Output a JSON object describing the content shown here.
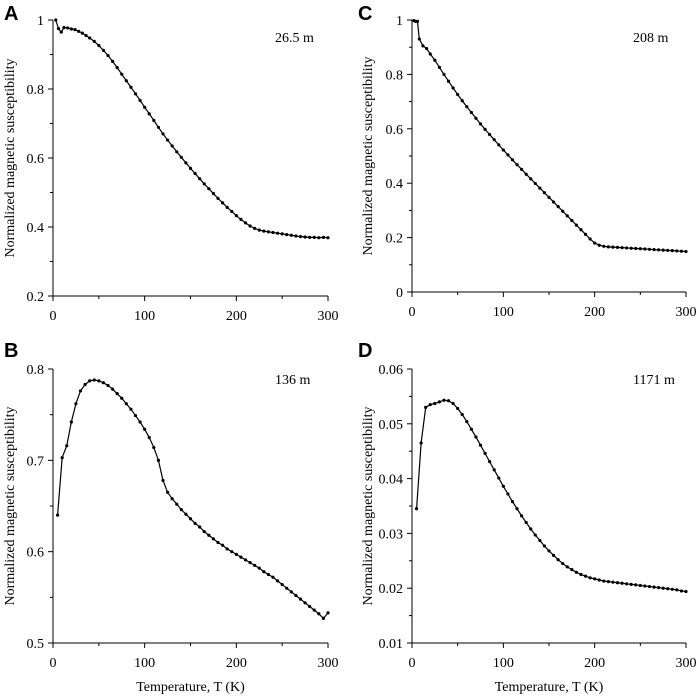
{
  "chart_data": [
    {
      "type": "line",
      "panel": "A",
      "annotation": "26.5 m",
      "ylabel": "Normalized magnetic susceptibility",
      "xlabel": "",
      "xlim": [
        0,
        300
      ],
      "ylim": [
        0.2,
        1.0
      ],
      "xticks": [
        "0",
        "100",
        "200",
        "300"
      ],
      "yticks": [
        "0.2",
        "0.4",
        "0.6",
        "0.8",
        "1"
      ],
      "x": [
        3,
        6,
        9,
        12,
        16,
        20,
        24,
        28,
        32,
        36,
        40,
        45,
        50,
        55,
        60,
        65,
        70,
        75,
        80,
        85,
        90,
        95,
        100,
        105,
        110,
        115,
        120,
        125,
        130,
        135,
        140,
        145,
        150,
        155,
        160,
        165,
        170,
        175,
        180,
        185,
        190,
        195,
        200,
        205,
        210,
        215,
        220,
        225,
        230,
        235,
        240,
        245,
        250,
        255,
        260,
        265,
        270,
        275,
        280,
        285,
        290,
        295,
        300
      ],
      "y": [
        1.0,
        0.975,
        0.965,
        0.978,
        0.977,
        0.974,
        0.972,
        0.967,
        0.962,
        0.955,
        0.948,
        0.938,
        0.926,
        0.912,
        0.897,
        0.88,
        0.862,
        0.843,
        0.824,
        0.805,
        0.786,
        0.767,
        0.747,
        0.728,
        0.709,
        0.689,
        0.67,
        0.652,
        0.635,
        0.618,
        0.602,
        0.586,
        0.57,
        0.555,
        0.54,
        0.525,
        0.511,
        0.497,
        0.483,
        0.47,
        0.457,
        0.445,
        0.433,
        0.422,
        0.412,
        0.403,
        0.396,
        0.391,
        0.388,
        0.386,
        0.384,
        0.382,
        0.38,
        0.378,
        0.376,
        0.374,
        0.372,
        0.371,
        0.37,
        0.37,
        0.369,
        0.37,
        0.369
      ]
    },
    {
      "type": "line",
      "panel": "B",
      "annotation": "136 m",
      "ylabel": "Normalized magnetic susceptibility",
      "xlabel": "Temperature, T (K)",
      "xlim": [
        0,
        300
      ],
      "ylim": [
        0.5,
        0.8
      ],
      "xticks": [
        "0",
        "100",
        "200",
        "300"
      ],
      "yticks": [
        "0.5",
        "0.6",
        "0.7",
        "0.8"
      ],
      "x": [
        5,
        10,
        15,
        20,
        25,
        30,
        35,
        40,
        45,
        50,
        55,
        60,
        65,
        70,
        75,
        80,
        85,
        90,
        95,
        100,
        105,
        110,
        115,
        120,
        125,
        130,
        135,
        140,
        145,
        150,
        155,
        160,
        165,
        170,
        175,
        180,
        185,
        190,
        195,
        200,
        205,
        210,
        215,
        220,
        225,
        230,
        235,
        240,
        245,
        250,
        255,
        260,
        265,
        270,
        275,
        280,
        285,
        290,
        295,
        300
      ],
      "y": [
        0.64,
        0.703,
        0.716,
        0.742,
        0.762,
        0.776,
        0.783,
        0.787,
        0.788,
        0.787,
        0.785,
        0.782,
        0.778,
        0.773,
        0.768,
        0.762,
        0.756,
        0.749,
        0.742,
        0.734,
        0.725,
        0.714,
        0.7,
        0.678,
        0.665,
        0.658,
        0.652,
        0.646,
        0.641,
        0.636,
        0.631,
        0.627,
        0.622,
        0.618,
        0.614,
        0.61,
        0.607,
        0.603,
        0.6,
        0.597,
        0.594,
        0.591,
        0.588,
        0.585,
        0.582,
        0.578,
        0.575,
        0.572,
        0.568,
        0.564,
        0.56,
        0.556,
        0.552,
        0.548,
        0.544,
        0.54,
        0.536,
        0.532,
        0.527,
        0.533
      ]
    },
    {
      "type": "line",
      "panel": "C",
      "annotation": "208 m",
      "ylabel": "Normalized magnetic susceptibility",
      "xlabel": "",
      "xlim": [
        0,
        300
      ],
      "ylim": [
        0,
        1.0
      ],
      "xticks": [
        "0",
        "100",
        "200",
        "300"
      ],
      "yticks": [
        "0",
        "0.2",
        "0.4",
        "0.6",
        "0.8",
        "1"
      ],
      "x": [
        2,
        4,
        6,
        8,
        12,
        16,
        20,
        25,
        30,
        35,
        40,
        45,
        50,
        55,
        60,
        65,
        70,
        75,
        80,
        85,
        90,
        95,
        100,
        105,
        110,
        115,
        120,
        125,
        130,
        135,
        140,
        145,
        150,
        155,
        160,
        165,
        170,
        175,
        180,
        185,
        190,
        195,
        200,
        205,
        210,
        215,
        220,
        225,
        230,
        235,
        240,
        245,
        250,
        255,
        260,
        265,
        270,
        275,
        280,
        285,
        290,
        295,
        300
      ],
      "y": [
        0.998,
        0.995,
        0.995,
        0.93,
        0.905,
        0.895,
        0.875,
        0.852,
        0.826,
        0.8,
        0.775,
        0.75,
        0.726,
        0.703,
        0.681,
        0.66,
        0.639,
        0.618,
        0.598,
        0.579,
        0.56,
        0.541,
        0.522,
        0.504,
        0.486,
        0.468,
        0.451,
        0.433,
        0.416,
        0.399,
        0.382,
        0.365,
        0.348,
        0.331,
        0.314,
        0.297,
        0.28,
        0.263,
        0.246,
        0.229,
        0.212,
        0.195,
        0.18,
        0.172,
        0.168,
        0.166,
        0.165,
        0.164,
        0.163,
        0.162,
        0.161,
        0.16,
        0.159,
        0.158,
        0.157,
        0.156,
        0.155,
        0.154,
        0.153,
        0.152,
        0.151,
        0.15,
        0.149
      ]
    },
    {
      "type": "line",
      "panel": "D",
      "annotation": "1171 m",
      "ylabel": "Normalized magnetic susceptibility",
      "xlabel": "Temperature, T (K)",
      "xlim": [
        0,
        300
      ],
      "ylim": [
        0.01,
        0.06
      ],
      "xticks": [
        "0",
        "100",
        "200",
        "300"
      ],
      "yticks": [
        "0.01",
        "0.02",
        "0.03",
        "0.04",
        "0.05",
        "0.06"
      ],
      "x": [
        5,
        10,
        15,
        20,
        25,
        30,
        35,
        40,
        45,
        50,
        55,
        60,
        65,
        70,
        75,
        80,
        85,
        90,
        95,
        100,
        105,
        110,
        115,
        120,
        125,
        130,
        135,
        140,
        145,
        150,
        155,
        160,
        165,
        170,
        175,
        180,
        185,
        190,
        195,
        200,
        205,
        210,
        215,
        220,
        225,
        230,
        235,
        240,
        245,
        250,
        255,
        260,
        265,
        270,
        275,
        280,
        285,
        290,
        295,
        300
      ],
      "y": [
        0.0345,
        0.0465,
        0.053,
        0.0535,
        0.0537,
        0.054,
        0.0543,
        0.0542,
        0.0537,
        0.0528,
        0.0517,
        0.0504,
        0.049,
        0.0476,
        0.0461,
        0.0446,
        0.0431,
        0.0416,
        0.0401,
        0.0386,
        0.0372,
        0.0358,
        0.0345,
        0.0332,
        0.032,
        0.0308,
        0.0297,
        0.0287,
        0.0277,
        0.0268,
        0.026,
        0.0252,
        0.0245,
        0.0239,
        0.0234,
        0.0229,
        0.0225,
        0.0222,
        0.0219,
        0.0217,
        0.0215,
        0.0213,
        0.0212,
        0.0211,
        0.021,
        0.0209,
        0.0208,
        0.0207,
        0.0206,
        0.0205,
        0.0204,
        0.0203,
        0.0202,
        0.0201,
        0.02,
        0.0199,
        0.0198,
        0.0197,
        0.0195,
        0.0194
      ]
    }
  ]
}
